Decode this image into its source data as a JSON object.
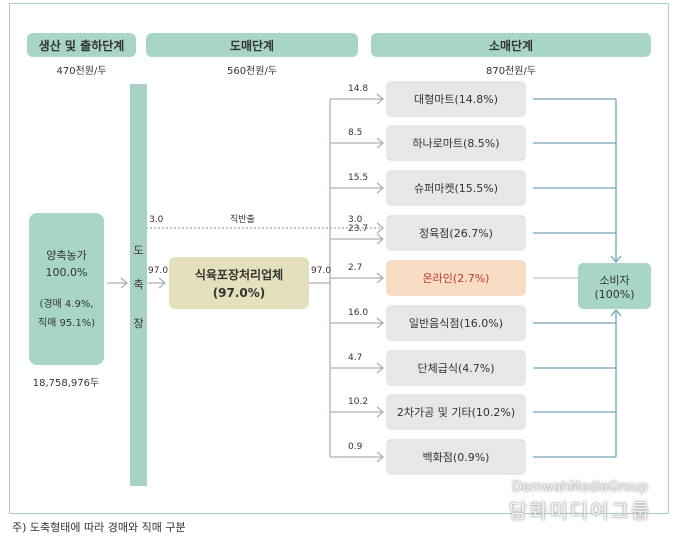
{
  "stages": {
    "production": {
      "title": "생산 및 출하단계",
      "price": "470천원/두"
    },
    "wholesale": {
      "title": "도매단계",
      "price": "560천원/두"
    },
    "retail": {
      "title": "소매단계",
      "price": "870천원/두"
    }
  },
  "slaughterhouse": {
    "chars": [
      "도",
      "축",
      "장"
    ]
  },
  "farm": {
    "name": "양축농가",
    "share": "100.0%",
    "detail1": "(경매 4.9%,",
    "detail2": "직매 95.1%)",
    "head_count": "18,758,976두"
  },
  "processor": {
    "name": "식육포장처리업체",
    "share": "(97.0%)",
    "in_value": "97.0",
    "out_value": "97.0"
  },
  "direct": {
    "value": "3.0",
    "label": "직반출"
  },
  "retail_items": [
    {
      "name": "대형마트(14.8%)",
      "flow": "14.8"
    },
    {
      "name": "하나로마트(8.5%)",
      "flow": "8.5"
    },
    {
      "name": "슈퍼마켓(15.5%)",
      "flow": "15.5"
    },
    {
      "name": "정육점(26.7%)",
      "flow": "23.7",
      "direct_flow": "3.0"
    },
    {
      "name": "온라인(2.7%)",
      "flow": "2.7",
      "highlight": true
    },
    {
      "name": "일반음식점(16.0%)",
      "flow": "16.0"
    },
    {
      "name": "단체급식(4.7%)",
      "flow": "4.7"
    },
    {
      "name": "2차가공 및 기타(10.2%)",
      "flow": "10.2"
    },
    {
      "name": "백화점(0.9%)",
      "flow": "0.9"
    }
  ],
  "consumer": {
    "name": "소비자",
    "share": "(100%)"
  },
  "footnote": "주) 도축형태에 따라 경매와 직매 구분",
  "watermark": {
    "en": "DamwahMediaGroup",
    "ko": "담화미디어그룹"
  },
  "colors": {
    "teal": "#a8d5c8",
    "processor": "#e4e0bb",
    "online": "#f8dcc4",
    "retail": "#e6e7e7",
    "line_gray": "#a8b3a8",
    "line_blue": "#6fa3b8"
  }
}
